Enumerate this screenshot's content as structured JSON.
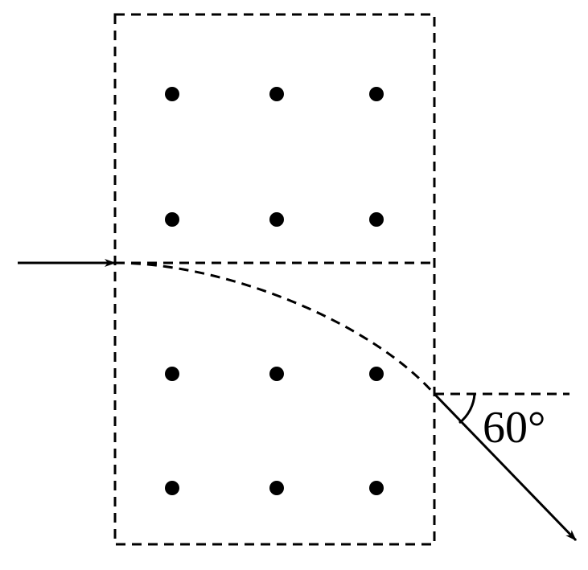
{
  "angle_label": "60°"
}
